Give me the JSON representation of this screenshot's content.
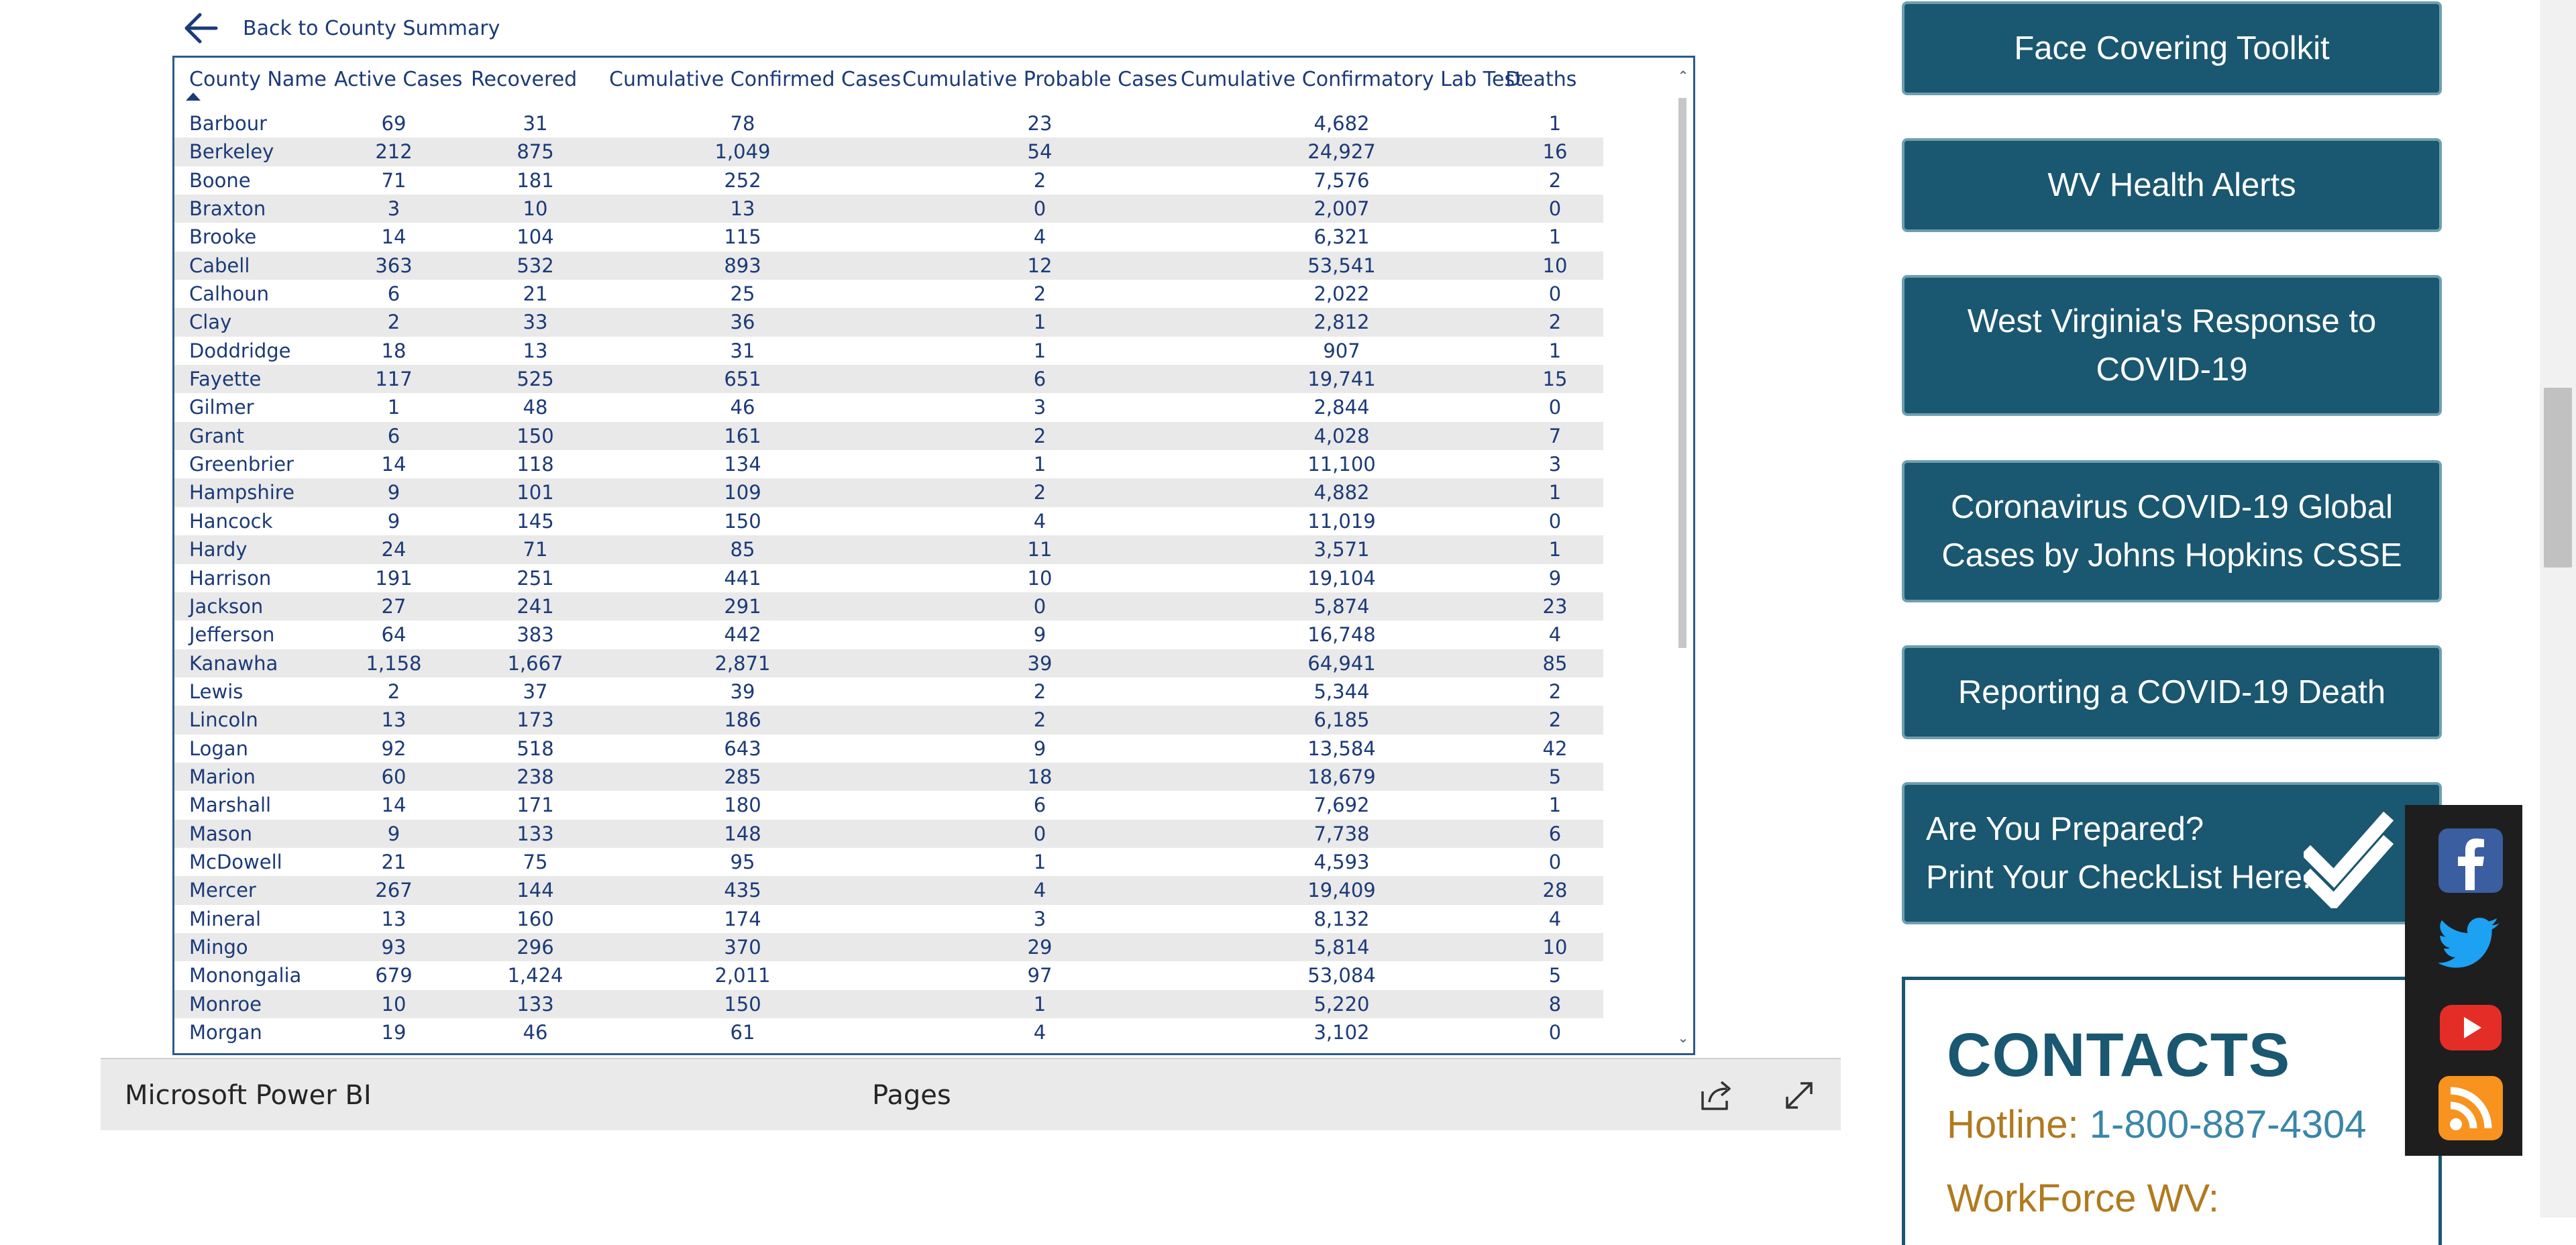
{
  "report": {
    "back_label": "Back to County Summary",
    "columns": [
      "County Name",
      "Active Cases",
      "Recovered",
      "Cumulative Confirmed Cases",
      "Cumulative Probable Cases",
      "Cumulative Confirmatory Lab Test",
      "Deaths"
    ],
    "rows": [
      [
        "Barbour",
        "69",
        "31",
        "78",
        "23",
        "4,682",
        "1"
      ],
      [
        "Berkeley",
        "212",
        "875",
        "1,049",
        "54",
        "24,927",
        "16"
      ],
      [
        "Boone",
        "71",
        "181",
        "252",
        "2",
        "7,576",
        "2"
      ],
      [
        "Braxton",
        "3",
        "10",
        "13",
        "0",
        "2,007",
        "0"
      ],
      [
        "Brooke",
        "14",
        "104",
        "115",
        "4",
        "6,321",
        "1"
      ],
      [
        "Cabell",
        "363",
        "532",
        "893",
        "12",
        "53,541",
        "10"
      ],
      [
        "Calhoun",
        "6",
        "21",
        "25",
        "2",
        "2,022",
        "0"
      ],
      [
        "Clay",
        "2",
        "33",
        "36",
        "1",
        "2,812",
        "2"
      ],
      [
        "Doddridge",
        "18",
        "13",
        "31",
        "1",
        "907",
        "1"
      ],
      [
        "Fayette",
        "117",
        "525",
        "651",
        "6",
        "19,741",
        "15"
      ],
      [
        "Gilmer",
        "1",
        "48",
        "46",
        "3",
        "2,844",
        "0"
      ],
      [
        "Grant",
        "6",
        "150",
        "161",
        "2",
        "4,028",
        "7"
      ],
      [
        "Greenbrier",
        "14",
        "118",
        "134",
        "1",
        "11,100",
        "3"
      ],
      [
        "Hampshire",
        "9",
        "101",
        "109",
        "2",
        "4,882",
        "1"
      ],
      [
        "Hancock",
        "9",
        "145",
        "150",
        "4",
        "11,019",
        "0"
      ],
      [
        "Hardy",
        "24",
        "71",
        "85",
        "11",
        "3,571",
        "1"
      ],
      [
        "Harrison",
        "191",
        "251",
        "441",
        "10",
        "19,104",
        "9"
      ],
      [
        "Jackson",
        "27",
        "241",
        "291",
        "0",
        "5,874",
        "23"
      ],
      [
        "Jefferson",
        "64",
        "383",
        "442",
        "9",
        "16,748",
        "4"
      ],
      [
        "Kanawha",
        "1,158",
        "1,667",
        "2,871",
        "39",
        "64,941",
        "85"
      ],
      [
        "Lewis",
        "2",
        "37",
        "39",
        "2",
        "5,344",
        "2"
      ],
      [
        "Lincoln",
        "13",
        "173",
        "186",
        "2",
        "6,185",
        "2"
      ],
      [
        "Logan",
        "92",
        "518",
        "643",
        "9",
        "13,584",
        "42"
      ],
      [
        "Marion",
        "60",
        "238",
        "285",
        "18",
        "18,679",
        "5"
      ],
      [
        "Marshall",
        "14",
        "171",
        "180",
        "6",
        "7,692",
        "1"
      ],
      [
        "Mason",
        "9",
        "133",
        "148",
        "0",
        "7,738",
        "6"
      ],
      [
        "McDowell",
        "21",
        "75",
        "95",
        "1",
        "4,593",
        "0"
      ],
      [
        "Mercer",
        "267",
        "144",
        "435",
        "4",
        "19,409",
        "28"
      ],
      [
        "Mineral",
        "13",
        "160",
        "174",
        "3",
        "8,132",
        "4"
      ],
      [
        "Mingo",
        "93",
        "296",
        "370",
        "29",
        "5,814",
        "10"
      ],
      [
        "Monongalia",
        "679",
        "1,424",
        "2,011",
        "97",
        "53,084",
        "5"
      ],
      [
        "Monroe",
        "10",
        "133",
        "150",
        "1",
        "5,220",
        "8"
      ],
      [
        "Morgan",
        "19",
        "46",
        "61",
        "4",
        "3,102",
        "0"
      ]
    ]
  },
  "pbi_bar": {
    "brand": "Microsoft Power BI",
    "pages_label": "Pages"
  },
  "links": {
    "face_covering": "Face Covering Toolkit",
    "health_alerts": "WV Health Alerts",
    "wv_response": "West Virginia's Response to COVID-19",
    "jhu": "Coronavirus COVID-19 Global Cases by Johns Hopkins CSSE",
    "reporting_death": "Reporting a COVID-19 Death",
    "checklist_line1": "Are You Prepared?",
    "checklist_line2": "Print Your CheckList Here."
  },
  "contacts": {
    "title": "CONTACTS",
    "hotline_label": "Hotline:",
    "hotline_number": "1-800-887-4304",
    "workforce_label": "WorkForce WV:"
  },
  "social": [
    "facebook-icon",
    "twitter-icon",
    "youtube-icon",
    "rss-icon"
  ],
  "colors": {
    "button_bg": "#1a5770",
    "table_text": "#1b3a78",
    "contacts_label": "#b07a1e",
    "contacts_link": "#3a86a8"
  }
}
